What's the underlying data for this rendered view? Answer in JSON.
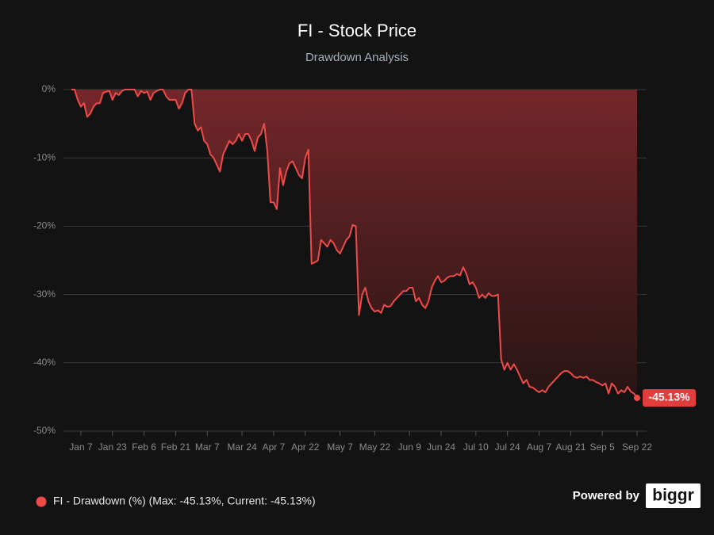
{
  "chart_data": {
    "type": "area",
    "title": "FI - Stock Price",
    "subtitle": "Drawdown Analysis",
    "brand": {
      "prefix": "Powered by",
      "logo": "biggr"
    },
    "ylim": [
      -50,
      0
    ],
    "yticks": [
      {
        "value": 0,
        "label": "0%"
      },
      {
        "value": -10,
        "label": "-10%"
      },
      {
        "value": -20,
        "label": "-20%"
      },
      {
        "value": -30,
        "label": "-30%"
      },
      {
        "value": -40,
        "label": "-40%"
      },
      {
        "value": -50,
        "label": "-50%"
      }
    ],
    "grid": true,
    "legend": "bottom-left",
    "categories": [
      null,
      null,
      null,
      "Jan 7",
      null,
      null,
      null,
      null,
      null,
      null,
      null,
      null,
      null,
      "Jan 23",
      null,
      null,
      null,
      null,
      null,
      null,
      null,
      null,
      null,
      "Feb 6",
      null,
      null,
      null,
      null,
      null,
      null,
      null,
      null,
      null,
      "Feb 21",
      null,
      null,
      null,
      null,
      null,
      null,
      null,
      null,
      null,
      "Mar 7",
      null,
      null,
      null,
      null,
      null,
      null,
      null,
      null,
      null,
      null,
      "Mar 24",
      null,
      null,
      null,
      null,
      null,
      null,
      null,
      null,
      null,
      "Apr 7",
      null,
      null,
      null,
      null,
      null,
      null,
      null,
      null,
      null,
      "Apr 22",
      null,
      null,
      null,
      null,
      null,
      null,
      null,
      null,
      null,
      null,
      "May 7",
      null,
      null,
      null,
      null,
      null,
      null,
      null,
      null,
      null,
      null,
      "May 22",
      null,
      null,
      null,
      null,
      null,
      null,
      null,
      null,
      null,
      null,
      "Jun 9",
      null,
      null,
      null,
      null,
      null,
      null,
      null,
      null,
      null,
      "Jun 24",
      null,
      null,
      null,
      null,
      null,
      null,
      null,
      null,
      null,
      null,
      "Jul 10",
      null,
      null,
      null,
      null,
      null,
      null,
      null,
      null,
      null,
      "Jul 24",
      null,
      null,
      null,
      null,
      null,
      null,
      null,
      null,
      null,
      "Aug 7",
      null,
      null,
      null,
      null,
      null,
      null,
      null,
      null,
      null,
      "Aug 21",
      null,
      null,
      null,
      null,
      null,
      null,
      null,
      null,
      null,
      "Sep 5",
      null,
      null,
      null,
      null,
      null,
      null,
      null,
      null,
      null,
      null,
      "Sep 22"
    ],
    "series": [
      {
        "name": "FI - Drawdown (%) (Max: -45.13%, Current: -45.13%)",
        "color": "#ef4a4a",
        "values": [
          0,
          0,
          -1.5,
          -2.5,
          -2,
          -4,
          -3.5,
          -2.5,
          -2,
          -2,
          -0.5,
          -0.3,
          -0.2,
          -1.5,
          -0.5,
          -0.8,
          -0.2,
          0,
          0,
          0,
          0,
          -1,
          -0.2,
          -0.5,
          -0.3,
          -1.5,
          -0.5,
          -0.2,
          0,
          0,
          -1,
          -1.5,
          -1.5,
          -1.5,
          -2.8,
          -2,
          -0.5,
          0,
          0,
          -5,
          -6,
          -5.5,
          -7.5,
          -8,
          -9.5,
          -10,
          -11,
          -12,
          -9.5,
          -8.5,
          -7.5,
          -8,
          -7.5,
          -6.5,
          -7.5,
          -6.5,
          -6.5,
          -7.5,
          -9,
          -7,
          -6.5,
          -5,
          -9,
          -16.5,
          -16.5,
          -17.5,
          -11.5,
          -14,
          -12,
          -10.8,
          -10.5,
          -11.5,
          -12.5,
          -13,
          -10,
          -8.8,
          -25.5,
          -25.3,
          -25,
          -22,
          -22.5,
          -23,
          -22,
          -22.5,
          -23.5,
          -24,
          -23,
          -22,
          -21.5,
          -19.8,
          -20,
          -33,
          -30,
          -29,
          -31,
          -32,
          -32.5,
          -32.3,
          -32.7,
          -31.5,
          -31.8,
          -31.7,
          -31,
          -30.5,
          -30,
          -29.5,
          -29.5,
          -29,
          -29,
          -31,
          -30.5,
          -31.5,
          -32,
          -31,
          -29,
          -28,
          -27.3,
          -28.2,
          -28,
          -27.5,
          -27.3,
          -27.3,
          -27,
          -27.2,
          -26,
          -27,
          -28.5,
          -28.2,
          -29,
          -30.5,
          -30,
          -30.5,
          -29.8,
          -30.2,
          -30.2,
          -30,
          -39.5,
          -41,
          -40,
          -41,
          -40.2,
          -41,
          -42,
          -43,
          -42.5,
          -43.5,
          -43.6,
          -44,
          -44.3,
          -44,
          -44.3,
          -43.5,
          -43,
          -42.5,
          -42,
          -41.5,
          -41.2,
          -41.2,
          -41.5,
          -42,
          -42.2,
          -42,
          -42.2,
          -42,
          -42.5,
          -42.5,
          -42.8,
          -43,
          -43.3,
          -43,
          -44.5,
          -43,
          -43.5,
          -44.5,
          -44,
          -44.3,
          -43.5,
          -44.2,
          -44.5,
          -45.13
        ],
        "value_labels": [
          null,
          null,
          null,
          null,
          null,
          null,
          null,
          null,
          null,
          null,
          null,
          null,
          null,
          null,
          null,
          null,
          null,
          null,
          null,
          null,
          null,
          null,
          null,
          null,
          null,
          null,
          null,
          null,
          null,
          null,
          null,
          null,
          null,
          null,
          null,
          null,
          null,
          null,
          null,
          null,
          null,
          null,
          null,
          null,
          null,
          null,
          null,
          null,
          null,
          null,
          null,
          null,
          null,
          null,
          null,
          null,
          null,
          null,
          null,
          null,
          null,
          null,
          null,
          null,
          null,
          null,
          null,
          null,
          null,
          null,
          null,
          null,
          null,
          null,
          null,
          null,
          null,
          null,
          null,
          null,
          null,
          null,
          null,
          null,
          null,
          null,
          null,
          null,
          null,
          null,
          null,
          null,
          null,
          null,
          null,
          null,
          null,
          null,
          null,
          null,
          null,
          null,
          null,
          null,
          null,
          null,
          null,
          null,
          null,
          null,
          null,
          null,
          null,
          null,
          null,
          null,
          null,
          null,
          null,
          null,
          null,
          null,
          null,
          null,
          null,
          null,
          null,
          null,
          null,
          null,
          null,
          null,
          null,
          null,
          null,
          null,
          null,
          null,
          null,
          null,
          null,
          null,
          null,
          null,
          null,
          null,
          null,
          null,
          null,
          null,
          null,
          null,
          null,
          null,
          null,
          null,
          null,
          null,
          null,
          null,
          null,
          null,
          null,
          null,
          null,
          null,
          null,
          null,
          null,
          null,
          null,
          null,
          null,
          null,
          null,
          null,
          null,
          null,
          null,
          "-45.13%"
        ]
      }
    ]
  }
}
